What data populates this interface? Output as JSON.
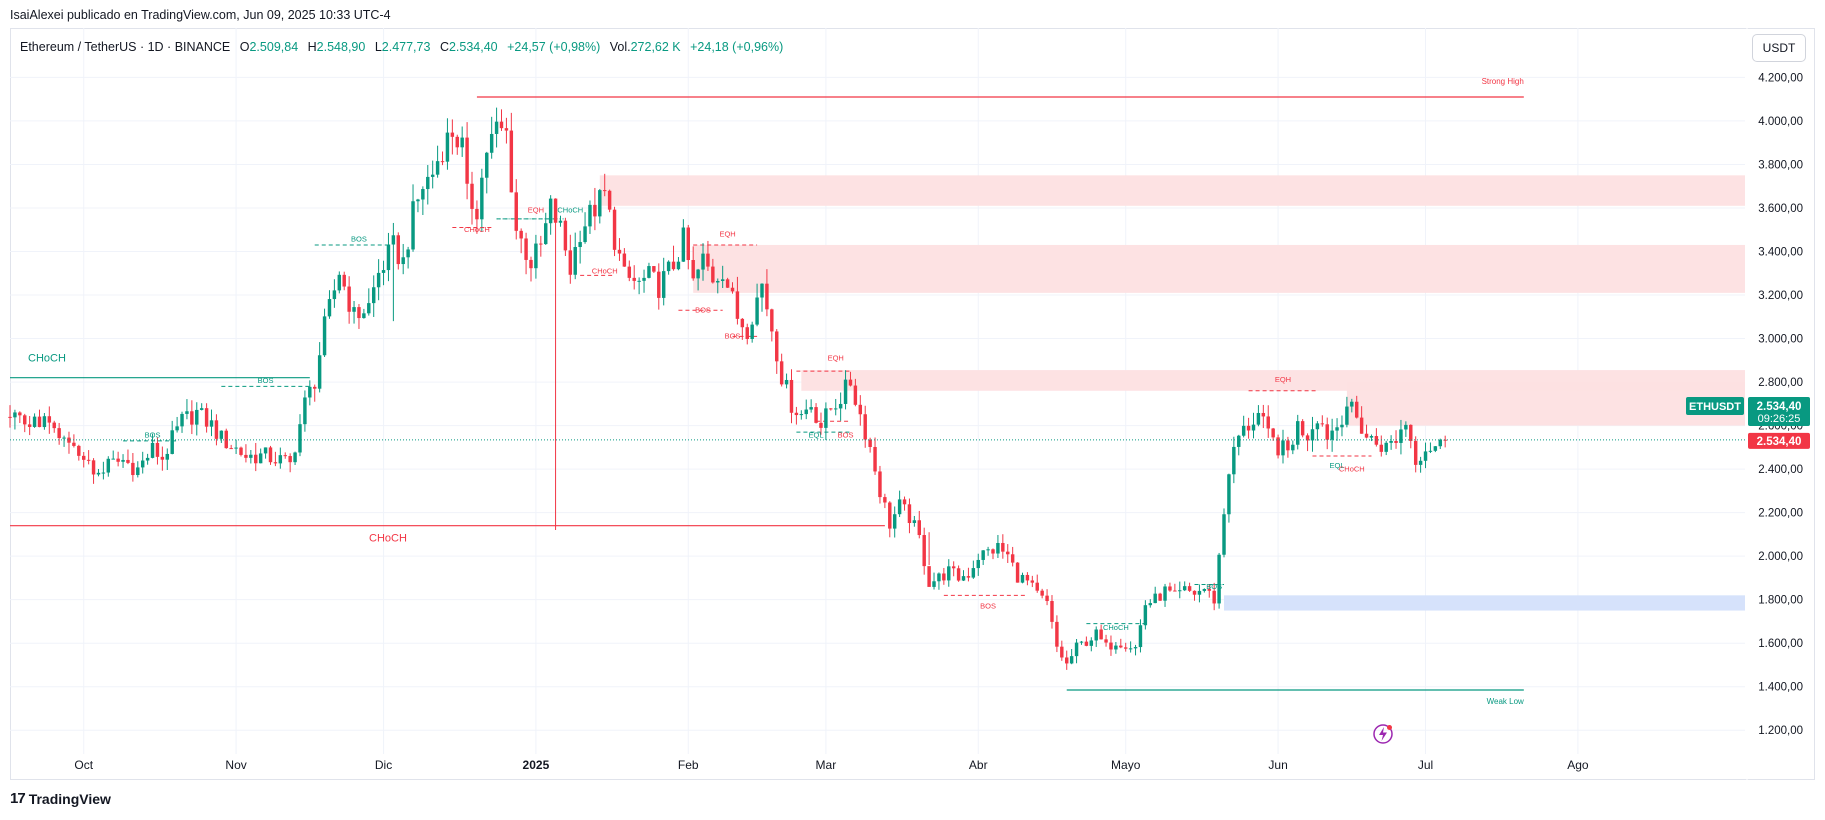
{
  "header": {
    "published_line": "IsaiAlexei publicado en TradingView.com, Jun 09, 2025 10:33 UTC-4"
  },
  "legend": {
    "symbol": "Ethereum / TetherUS · 1D · BINANCE",
    "o_label": "O",
    "o_value": "2.509,84",
    "h_label": "H",
    "h_value": "2.548,90",
    "l_label": "L",
    "l_value": "2.477,73",
    "c_label": "C",
    "c_value": "2.534,40",
    "change": "+24,57 (+0,98%)",
    "vol_label": "Vol.",
    "vol_value": "272,62 K",
    "vol_change": "+24,18 (+0,96%)"
  },
  "currency_button": "USDT",
  "footer": {
    "brand": "TradingView",
    "logo_glyph": "17"
  },
  "colors": {
    "up": "#089981",
    "down": "#f23645",
    "supply_zone": "#fde0e2",
    "demand_zone": "#d6e2fb",
    "grid": "#f0f3fa",
    "text": "#131722"
  },
  "chart_data": {
    "type": "candlestick",
    "symbol": "ETHUSDT",
    "ylim": [
      1100,
      4280
    ],
    "y_ticks": [
      1200,
      1400,
      1600,
      1800,
      2000,
      2200,
      2400,
      2600,
      2800,
      3000,
      3200,
      3400,
      3600,
      3800,
      4000,
      4200
    ],
    "y_tick_labels": [
      "1.200,00",
      "1.400,00",
      "1.600,00",
      "1.800,00",
      "2.000,00",
      "2.200,00",
      "2.400,00",
      "2.600,00",
      "2.800,00",
      "3.000,00",
      "3.200,00",
      "3.400,00",
      "3.600,00",
      "3.800,00",
      "4.000,00",
      "4.200,00"
    ],
    "x_range_days": [
      -15,
      338
    ],
    "x_ticks": [
      {
        "day": 0,
        "label": "Oct",
        "bold": false
      },
      {
        "day": 31,
        "label": "Nov",
        "bold": false
      },
      {
        "day": 61,
        "label": "Dic",
        "bold": false
      },
      {
        "day": 92,
        "label": "2025",
        "bold": true
      },
      {
        "day": 123,
        "label": "Feb",
        "bold": false
      },
      {
        "day": 151,
        "label": "Mar",
        "bold": false
      },
      {
        "day": 182,
        "label": "Abr",
        "bold": false
      },
      {
        "day": 212,
        "label": "Mayo",
        "bold": false
      },
      {
        "day": 243,
        "label": "Jun",
        "bold": false
      },
      {
        "day": 273,
        "label": "Jul",
        "bold": false
      },
      {
        "day": 304,
        "label": "Ago",
        "bold": false
      }
    ],
    "x_origin": "2024-10-01",
    "close_anchors": [
      [
        -15,
        2640
      ],
      [
        -8,
        2610
      ],
      [
        -5,
        2530
      ],
      [
        0,
        2470
      ],
      [
        2,
        2370
      ],
      [
        5,
        2420
      ],
      [
        8,
        2440
      ],
      [
        11,
        2400
      ],
      [
        14,
        2490
      ],
      [
        16,
        2450
      ],
      [
        20,
        2620
      ],
      [
        23,
        2660
      ],
      [
        26,
        2600
      ],
      [
        28,
        2540
      ],
      [
        30,
        2510
      ],
      [
        33,
        2460
      ],
      [
        37,
        2460
      ],
      [
        40,
        2440
      ],
      [
        42,
        2420
      ],
      [
        45,
        2700
      ],
      [
        47,
        2810
      ],
      [
        49,
        3050
      ],
      [
        52,
        3310
      ],
      [
        55,
        3100
      ],
      [
        58,
        3150
      ],
      [
        60,
        3300
      ],
      [
        63,
        3420
      ],
      [
        65,
        3350
      ],
      [
        67,
        3570
      ],
      [
        69,
        3700
      ],
      [
        71,
        3760
      ],
      [
        73,
        3880
      ],
      [
        75,
        3950
      ],
      [
        77,
        3880
      ],
      [
        78,
        3650
      ],
      [
        80,
        3600
      ],
      [
        82,
        3870
      ],
      [
        84,
        3960
      ],
      [
        86,
        3940
      ],
      [
        88,
        3500
      ],
      [
        91,
        3350
      ],
      [
        93,
        3420
      ],
      [
        95,
        3600
      ],
      [
        97,
        3500
      ],
      [
        99,
        3320
      ],
      [
        101,
        3500
      ],
      [
        104,
        3600
      ],
      [
        106,
        3660
      ],
      [
        108,
        3460
      ],
      [
        110,
        3280
      ],
      [
        113,
        3250
      ],
      [
        115,
        3280
      ],
      [
        117,
        3240
      ],
      [
        120,
        3340
      ],
      [
        122,
        3450
      ],
      [
        124,
        3250
      ],
      [
        126,
        3360
      ],
      [
        128,
        3280
      ],
      [
        130,
        3320
      ],
      [
        133,
        3100
      ],
      [
        135,
        3050
      ],
      [
        138,
        3250
      ],
      [
        140,
        3050
      ],
      [
        142,
        2830
      ],
      [
        144,
        2700
      ],
      [
        146,
        2650
      ],
      [
        148,
        2700
      ],
      [
        150,
        2600
      ],
      [
        152,
        2680
      ],
      [
        154,
        2730
      ],
      [
        156,
        2800
      ],
      [
        158,
        2650
      ],
      [
        160,
        2500
      ],
      [
        162,
        2300
      ],
      [
        164,
        2150
      ],
      [
        166,
        2230
      ],
      [
        168,
        2180
      ],
      [
        170,
        2080
      ],
      [
        172,
        1880
      ],
      [
        174,
        1900
      ],
      [
        176,
        1930
      ],
      [
        178,
        1900
      ],
      [
        180,
        1920
      ],
      [
        182,
        2000
      ],
      [
        184,
        2020
      ],
      [
        186,
        2040
      ],
      [
        188,
        2000
      ],
      [
        190,
        1910
      ],
      [
        192,
        1880
      ],
      [
        194,
        1820
      ],
      [
        196,
        1780
      ],
      [
        198,
        1580
      ],
      [
        200,
        1500
      ],
      [
        202,
        1580
      ],
      [
        204,
        1610
      ],
      [
        206,
        1640
      ],
      [
        208,
        1580
      ],
      [
        210,
        1610
      ],
      [
        212,
        1600
      ],
      [
        214,
        1580
      ],
      [
        216,
        1780
      ],
      [
        218,
        1800
      ],
      [
        220,
        1840
      ],
      [
        222,
        1810
      ],
      [
        224,
        1840
      ],
      [
        226,
        1830
      ],
      [
        228,
        1850
      ],
      [
        230,
        1800
      ],
      [
        232,
        2200
      ],
      [
        233,
        2400
      ],
      [
        235,
        2550
      ],
      [
        237,
        2600
      ],
      [
        239,
        2650
      ],
      [
        241,
        2550
      ],
      [
        243,
        2500
      ],
      [
        245,
        2480
      ],
      [
        247,
        2600
      ],
      [
        249,
        2560
      ],
      [
        251,
        2650
      ],
      [
        253,
        2560
      ],
      [
        255,
        2600
      ],
      [
        257,
        2700
      ],
      [
        259,
        2630
      ],
      [
        261,
        2550
      ],
      [
        263,
        2520
      ],
      [
        265,
        2500
      ],
      [
        267,
        2540
      ],
      [
        269,
        2620
      ],
      [
        271,
        2450
      ],
      [
        273,
        2500
      ],
      [
        276,
        2510
      ],
      [
        277,
        2534
      ]
    ],
    "spikes": [
      {
        "day": 96,
        "low": 2120
      },
      {
        "day": 63,
        "low": 3080
      },
      {
        "day": 172,
        "low": 2110
      }
    ],
    "last_price": {
      "ticker": "ETHUSDT",
      "value": 2534.4,
      "label": "2.534,40",
      "countdown": "09:26:25"
    },
    "zones": [
      {
        "kind": "supply",
        "day_start": 105,
        "day_end": 338,
        "y_low": 3610,
        "y_high": 3750
      },
      {
        "kind": "supply",
        "day_start": 124,
        "day_end": 338,
        "y_low": 3210,
        "y_high": 3430
      },
      {
        "kind": "supply",
        "day_start": 146,
        "day_end": 338,
        "y_low": 2760,
        "y_high": 2855
      },
      {
        "kind": "supply",
        "day_start": 257,
        "day_end": 338,
        "y_low": 2600,
        "y_high": 2800
      },
      {
        "kind": "demand",
        "day_start": 232,
        "day_end": 338,
        "y_low": 1750,
        "y_high": 1820
      }
    ],
    "levels": [
      {
        "label": "Strong High",
        "y": 4110,
        "day_start": 80,
        "day_end": 293,
        "color": "down"
      },
      {
        "label": "Weak Low",
        "y": 1385,
        "day_start": 200,
        "day_end": 293,
        "color": "up"
      },
      {
        "label": "CHoCH",
        "y": 2820,
        "day_start": -15,
        "day_end": 46,
        "color": "up"
      },
      {
        "label": "CHoCH",
        "y": 2140,
        "day_start": -15,
        "day_end": 163,
        "color": "down"
      }
    ],
    "structure_labels": [
      {
        "text": "BOS",
        "day": 56,
        "y": 3445,
        "color": "up"
      },
      {
        "text": "BOS",
        "day": 37,
        "y": 2795,
        "color": "up"
      },
      {
        "text": "BOS",
        "day": 14,
        "y": 2545,
        "color": "up"
      },
      {
        "text": "CHoCH",
        "day": 80,
        "y": 3490,
        "color": "down"
      },
      {
        "text": "EQH",
        "day": 92,
        "y": 3580,
        "color": "down"
      },
      {
        "text": "CHoCH",
        "day": 99,
        "y": 3580,
        "color": "up"
      },
      {
        "text": "CHoCH",
        "day": 106,
        "y": 3300,
        "color": "down"
      },
      {
        "text": "EQH",
        "day": 131,
        "y": 3470,
        "color": "down"
      },
      {
        "text": "BOS",
        "day": 126,
        "y": 3120,
        "color": "down"
      },
      {
        "text": "BOS",
        "day": 132,
        "y": 3000,
        "color": "down"
      },
      {
        "text": "EQH",
        "day": 153,
        "y": 2900,
        "color": "down"
      },
      {
        "text": "EQL",
        "day": 149,
        "y": 2545,
        "color": "up"
      },
      {
        "text": "BOS",
        "day": 155,
        "y": 2545,
        "color": "down"
      },
      {
        "text": "BOS",
        "day": 184,
        "y": 1760,
        "color": "down"
      },
      {
        "text": "CHoCH",
        "day": 210,
        "y": 1660,
        "color": "up"
      },
      {
        "text": "BOS",
        "day": 230,
        "y": 1850,
        "color": "up"
      },
      {
        "text": "EQH",
        "day": 244,
        "y": 2800,
        "color": "down"
      },
      {
        "text": "EQL",
        "day": 255,
        "y": 2405,
        "color": "up"
      },
      {
        "text": "CHoCH",
        "day": 258,
        "y": 2390,
        "color": "down"
      }
    ],
    "structure_lines": [
      {
        "day_start": 47,
        "day_end": 62,
        "y": 3430,
        "color": "up",
        "dash": true
      },
      {
        "day_start": 28,
        "day_end": 46,
        "y": 2780,
        "color": "up",
        "dash": true
      },
      {
        "day_start": 8,
        "day_end": 19,
        "y": 2530,
        "color": "up",
        "dash": true
      },
      {
        "day_start": 75,
        "day_end": 83,
        "y": 3510,
        "color": "down",
        "dash": true
      },
      {
        "day_start": 84,
        "day_end": 97,
        "y": 3550,
        "color": "up",
        "dash": true
      },
      {
        "day_start": 84,
        "day_end": 98,
        "y": 3550,
        "color": "up",
        "dash": false
      },
      {
        "day_start": 101,
        "day_end": 108,
        "y": 3290,
        "color": "down",
        "dash": true
      },
      {
        "day_start": 124,
        "day_end": 137,
        "y": 3430,
        "color": "down",
        "dash": true
      },
      {
        "day_start": 121,
        "day_end": 130,
        "y": 3130,
        "color": "down",
        "dash": true
      },
      {
        "day_start": 132,
        "day_end": 137,
        "y": 3010,
        "color": "down",
        "dash": true
      },
      {
        "day_start": 145,
        "day_end": 156,
        "y": 2850,
        "color": "down",
        "dash": true
      },
      {
        "day_start": 145,
        "day_end": 156,
        "y": 2570,
        "color": "up",
        "dash": true
      },
      {
        "day_start": 149,
        "day_end": 156,
        "y": 2620,
        "color": "down",
        "dash": true
      },
      {
        "day_start": 175,
        "day_end": 192,
        "y": 1820,
        "color": "down",
        "dash": true
      },
      {
        "day_start": 204,
        "day_end": 216,
        "y": 1690,
        "color": "up",
        "dash": true
      },
      {
        "day_start": 226,
        "day_end": 232,
        "y": 1870,
        "color": "up",
        "dash": true
      },
      {
        "day_start": 237,
        "day_end": 251,
        "y": 2760,
        "color": "down",
        "dash": true
      },
      {
        "day_start": 250,
        "day_end": 262,
        "y": 2460,
        "color": "down",
        "dash": true
      }
    ]
  }
}
